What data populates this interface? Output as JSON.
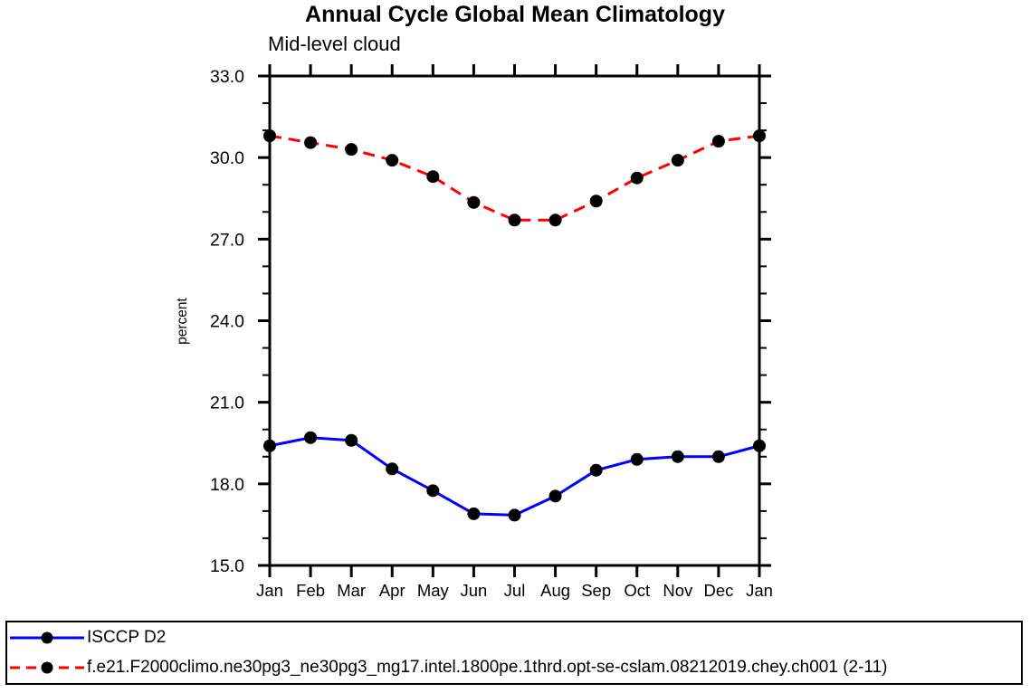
{
  "header": {
    "title": "Annual Cycle Global Mean Climatology",
    "subtitle": "Mid-level cloud"
  },
  "colors": {
    "obs_line": "#0000ff",
    "model_line": "#ff0000",
    "marker": "#000000",
    "axis": "#000000",
    "background": "#ffffff"
  },
  "chart_data": {
    "type": "line",
    "title": "Annual Cycle Global Mean Climatology",
    "subtitle": "Mid-level cloud",
    "xlabel": "",
    "ylabel": "percent",
    "categories": [
      "Jan",
      "Feb",
      "Mar",
      "Apr",
      "May",
      "Jun",
      "Jul",
      "Aug",
      "Sep",
      "Oct",
      "Nov",
      "Dec",
      "Jan"
    ],
    "ylim": [
      15.0,
      33.0
    ],
    "ytick_major_interval": 3.0,
    "ytick_minor_interval": 1.0,
    "ytick_labels": [
      "15.0",
      "18.0",
      "21.0",
      "24.0",
      "27.0",
      "30.0",
      "33.0"
    ],
    "grid": false,
    "legend_position": "bottom-outside-box",
    "series": [
      {
        "name": "ISCCP D2",
        "color": "#0000ff",
        "line_style": "solid",
        "marker": "filled-circle",
        "marker_color": "#000000",
        "values": [
          19.4,
          19.7,
          19.6,
          18.55,
          17.75,
          16.9,
          16.85,
          17.55,
          18.5,
          18.9,
          19.0,
          19.0,
          19.4
        ]
      },
      {
        "name": "f.e21.F2000climo.ne30pg3_ne30pg3_mg17.intel.1800pe.1thrd.opt-se-cslam.08212019.chey.ch001 (2-11)",
        "color": "#ff0000",
        "line_style": "dashed",
        "marker": "filled-circle",
        "marker_color": "#000000",
        "values": [
          30.8,
          30.55,
          30.3,
          29.9,
          29.3,
          28.35,
          27.7,
          27.7,
          28.4,
          29.25,
          29.9,
          30.6,
          30.8
        ]
      }
    ]
  }
}
